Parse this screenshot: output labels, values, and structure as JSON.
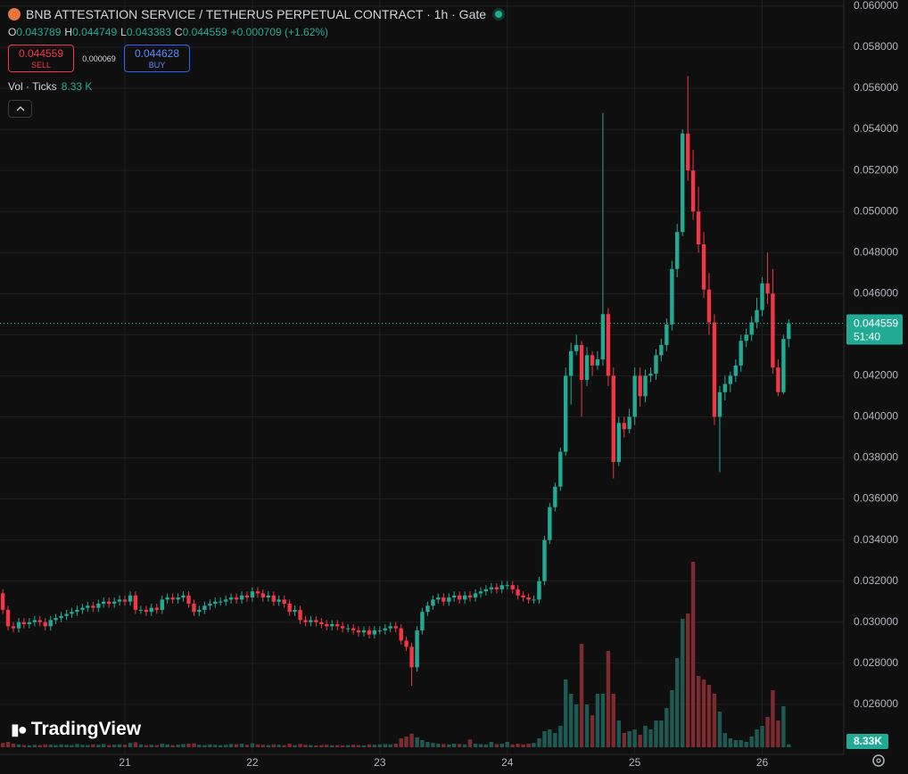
{
  "header": {
    "title": "BNB ATTESTATION SERVICE / TETHERUS PERPETUAL CONTRACT · 1h · Gate",
    "open_label": "O",
    "open": 0.043789,
    "high_label": "H",
    "high": 0.044749,
    "low_label": "L",
    "low": 0.043383,
    "close_label": "C",
    "close": 0.044559,
    "change": "+0.000709 (+1.62%)",
    "sell_price": 0.044559,
    "sell_label": "SELL",
    "spread": 6.9e-05,
    "buy_price": 0.044628,
    "buy_label": "BUY",
    "volume_title": "Vol · Ticks",
    "volume_value": "8.33 K",
    "brand": "TradingView"
  },
  "chart_data": {
    "type": "candlestick",
    "up_color": "#22ab94",
    "down_color": "#f23645",
    "volume_up_color": "#1d5a53",
    "volume_down_color": "#7d2a30",
    "grid": true,
    "xlim": [
      20.02,
      26.64
    ],
    "xticks": [
      21,
      22,
      23,
      24,
      25,
      26
    ],
    "ylim": [
      0.02356,
      0.0603
    ],
    "yticks": [
      {
        "value": 0.026,
        "label": "0.026000"
      },
      {
        "value": 0.028,
        "label": "0.028000"
      },
      {
        "value": 0.03,
        "label": "0.030000"
      },
      {
        "value": 0.032,
        "label": "0.032000"
      },
      {
        "value": 0.034,
        "label": "0.034000"
      },
      {
        "value": 0.036,
        "label": "0.036000"
      },
      {
        "value": 0.038,
        "label": "0.038000"
      },
      {
        "value": 0.04,
        "label": "0.040000"
      },
      {
        "value": 0.042,
        "label": "0.042000"
      },
      {
        "value": 0.044,
        "label": "0.044000"
      },
      {
        "value": 0.046,
        "label": "0.046000"
      },
      {
        "value": 0.048,
        "label": "0.048000"
      },
      {
        "value": 0.05,
        "label": "0.050000"
      },
      {
        "value": 0.052,
        "label": "0.052000"
      },
      {
        "value": 0.054,
        "label": "0.054000"
      },
      {
        "value": 0.056,
        "label": "0.056000"
      },
      {
        "value": 0.058,
        "label": "0.058000"
      },
      {
        "value": 0.06,
        "label": "0.060000"
      }
    ],
    "vlim": [
      0,
      600000
    ],
    "last_price": {
      "value": 0.044559,
      "label": "0.044559"
    },
    "countdown": "51:40",
    "last_volume_label": "8.33K",
    "x": [
      20.042,
      20.083,
      20.125,
      20.167,
      20.208,
      20.25,
      20.292,
      20.333,
      20.375,
      20.417,
      20.458,
      20.5,
      20.542,
      20.583,
      20.625,
      20.667,
      20.708,
      20.75,
      20.792,
      20.833,
      20.875,
      20.917,
      20.958,
      21,
      21.042,
      21.083,
      21.125,
      21.167,
      21.208,
      21.25,
      21.292,
      21.333,
      21.375,
      21.417,
      21.458,
      21.5,
      21.542,
      21.583,
      21.625,
      21.667,
      21.708,
      21.75,
      21.792,
      21.833,
      21.875,
      21.917,
      21.958,
      22,
      22.042,
      22.083,
      22.125,
      22.167,
      22.208,
      22.25,
      22.292,
      22.333,
      22.375,
      22.417,
      22.458,
      22.5,
      22.542,
      22.583,
      22.625,
      22.667,
      22.708,
      22.75,
      22.792,
      22.833,
      22.875,
      22.917,
      22.958,
      23,
      23.042,
      23.083,
      23.125,
      23.167,
      23.208,
      23.25,
      23.292,
      23.333,
      23.375,
      23.417,
      23.458,
      23.5,
      23.542,
      23.583,
      23.625,
      23.667,
      23.708,
      23.75,
      23.792,
      23.833,
      23.875,
      23.917,
      23.958,
      24,
      24.042,
      24.083,
      24.125,
      24.167,
      24.208,
      24.25,
      24.292,
      24.333,
      24.375,
      24.417,
      24.458,
      24.5,
      24.542,
      24.583,
      24.625,
      24.667,
      24.708,
      24.75,
      24.792,
      24.833,
      24.875,
      24.917,
      24.958,
      25,
      25.042,
      25.083,
      25.125,
      25.167,
      25.208,
      25.25,
      25.292,
      25.333,
      25.375,
      25.417,
      25.458,
      25.5,
      25.542,
      25.583,
      25.625,
      25.667,
      25.708,
      25.75,
      25.792,
      25.833,
      25.875,
      25.917,
      25.958,
      26,
      26.042,
      26.083,
      26.125,
      26.167,
      26.208
    ],
    "open": [
      0.0314,
      0.0306,
      0.0298,
      0.0297,
      0.03,
      0.0299,
      0.03,
      0.0301,
      0.03,
      0.0298,
      0.0301,
      0.0302,
      0.0303,
      0.0304,
      0.0305,
      0.0306,
      0.0307,
      0.0308,
      0.0307,
      0.0309,
      0.031,
      0.0309,
      0.031,
      0.0311,
      0.031,
      0.0313,
      0.0306,
      0.0306,
      0.0305,
      0.0307,
      0.0306,
      0.0311,
      0.0312,
      0.0311,
      0.0312,
      0.0313,
      0.0309,
      0.0305,
      0.0306,
      0.0308,
      0.0309,
      0.031,
      0.031,
      0.0311,
      0.0312,
      0.0311,
      0.0313,
      0.0312,
      0.0315,
      0.0314,
      0.0312,
      0.0313,
      0.031,
      0.0311,
      0.0309,
      0.0305,
      0.0306,
      0.0301,
      0.03,
      0.0301,
      0.03,
      0.0299,
      0.0298,
      0.0299,
      0.0298,
      0.0297,
      0.0297,
      0.0296,
      0.0295,
      0.0296,
      0.0294,
      0.0296,
      0.0296,
      0.0297,
      0.0298,
      0.0297,
      0.0291,
      0.0288,
      0.0278,
      0.0296,
      0.0305,
      0.0308,
      0.0311,
      0.0312,
      0.031,
      0.0312,
      0.0313,
      0.0311,
      0.0313,
      0.0312,
      0.0314,
      0.0315,
      0.0316,
      0.0317,
      0.0316,
      0.0318,
      0.0318,
      0.0316,
      0.0313,
      0.0312,
      0.0311,
      0.0311,
      0.032,
      0.034,
      0.0356,
      0.0366,
      0.0383,
      0.042,
      0.0432,
      0.0435,
      0.0418,
      0.043,
      0.0425,
      0.0428,
      0.045,
      0.042,
      0.0378,
      0.0397,
      0.0394,
      0.04,
      0.042,
      0.041,
      0.042,
      0.0421,
      0.043,
      0.0435,
      0.0445,
      0.0472,
      0.049,
      0.0538,
      0.052,
      0.05,
      0.0484,
      0.0462,
      0.0446,
      0.04,
      0.0412,
      0.0416,
      0.042,
      0.0425,
      0.0437,
      0.044,
      0.0446,
      0.0452,
      0.0465,
      0.046,
      0.0424,
      0.0412,
      0.043789
    ],
    "high": [
      0.0316,
      0.0308,
      0.03,
      0.0302,
      0.0302,
      0.0302,
      0.0303,
      0.0303,
      0.0302,
      0.0303,
      0.0304,
      0.0305,
      0.0306,
      0.0307,
      0.0308,
      0.0309,
      0.031,
      0.031,
      0.0311,
      0.0312,
      0.0312,
      0.0312,
      0.0313,
      0.0313,
      0.0315,
      0.0315,
      0.0308,
      0.0308,
      0.0309,
      0.0309,
      0.0313,
      0.0314,
      0.0314,
      0.0314,
      0.0315,
      0.0315,
      0.0311,
      0.0308,
      0.031,
      0.0311,
      0.0312,
      0.0312,
      0.0313,
      0.0314,
      0.0314,
      0.0315,
      0.0315,
      0.0317,
      0.0317,
      0.0316,
      0.0315,
      0.0315,
      0.0313,
      0.0313,
      0.0311,
      0.0308,
      0.0308,
      0.0303,
      0.0303,
      0.0303,
      0.0302,
      0.0301,
      0.0301,
      0.0301,
      0.03,
      0.0299,
      0.0299,
      0.0298,
      0.0298,
      0.0298,
      0.0298,
      0.0298,
      0.0299,
      0.03,
      0.03,
      0.0299,
      0.0293,
      0.029,
      0.0298,
      0.0307,
      0.031,
      0.0313,
      0.0314,
      0.0314,
      0.0314,
      0.0315,
      0.0315,
      0.0315,
      0.0315,
      0.0316,
      0.0317,
      0.0318,
      0.0319,
      0.0319,
      0.032,
      0.032,
      0.032,
      0.0318,
      0.0315,
      0.0314,
      0.0313,
      0.0322,
      0.0342,
      0.0358,
      0.0368,
      0.0385,
      0.0424,
      0.0436,
      0.044,
      0.0437,
      0.0434,
      0.0432,
      0.0432,
      0.0548,
      0.0453,
      0.0424,
      0.04,
      0.04,
      0.0404,
      0.0424,
      0.0424,
      0.0423,
      0.0424,
      0.0433,
      0.0438,
      0.0448,
      0.0476,
      0.0494,
      0.054,
      0.0566,
      0.053,
      0.0512,
      0.049,
      0.047,
      0.045,
      0.0415,
      0.042,
      0.0422,
      0.0428,
      0.044,
      0.0443,
      0.0449,
      0.0458,
      0.0468,
      0.048,
      0.0472,
      0.0428,
      0.044,
      0.044749
    ],
    "low": [
      0.0304,
      0.0296,
      0.0295,
      0.0295,
      0.0297,
      0.0297,
      0.0298,
      0.0298,
      0.0296,
      0.0296,
      0.0299,
      0.03,
      0.0301,
      0.0302,
      0.0303,
      0.0304,
      0.0305,
      0.0305,
      0.0305,
      0.0307,
      0.0307,
      0.0307,
      0.0308,
      0.0308,
      0.0308,
      0.0304,
      0.0304,
      0.0303,
      0.0303,
      0.0304,
      0.0304,
      0.0309,
      0.0309,
      0.0309,
      0.031,
      0.0307,
      0.0303,
      0.0303,
      0.0304,
      0.0306,
      0.0307,
      0.0308,
      0.0308,
      0.0309,
      0.0309,
      0.0309,
      0.031,
      0.031,
      0.0312,
      0.031,
      0.031,
      0.0308,
      0.0308,
      0.0307,
      0.0303,
      0.0303,
      0.0299,
      0.0298,
      0.0298,
      0.0298,
      0.0297,
      0.0296,
      0.0296,
      0.0296,
      0.0295,
      0.0295,
      0.0294,
      0.0293,
      0.0293,
      0.0292,
      0.0292,
      0.0294,
      0.0294,
      0.0295,
      0.0295,
      0.0289,
      0.0286,
      0.0269,
      0.0276,
      0.0294,
      0.0303,
      0.0306,
      0.0309,
      0.0308,
      0.0308,
      0.031,
      0.0309,
      0.0309,
      0.031,
      0.031,
      0.0312,
      0.0313,
      0.0314,
      0.0314,
      0.0314,
      0.0316,
      0.0314,
      0.0311,
      0.031,
      0.0309,
      0.0309,
      0.0309,
      0.0318,
      0.0338,
      0.0354,
      0.0364,
      0.0381,
      0.0406,
      0.043,
      0.04,
      0.0415,
      0.042,
      0.0423,
      0.0425,
      0.0415,
      0.037,
      0.0376,
      0.039,
      0.0392,
      0.0396,
      0.0405,
      0.0407,
      0.0417,
      0.0418,
      0.0427,
      0.0432,
      0.0442,
      0.0468,
      0.0488,
      0.0515,
      0.0496,
      0.048,
      0.0458,
      0.044,
      0.0396,
      0.0373,
      0.0408,
      0.0412,
      0.0417,
      0.0422,
      0.0434,
      0.0437,
      0.0443,
      0.0449,
      0.0455,
      0.0421,
      0.041,
      0.0411,
      0.043383
    ],
    "close": [
      0.0306,
      0.0298,
      0.0297,
      0.03,
      0.0299,
      0.03,
      0.0301,
      0.03,
      0.0298,
      0.0301,
      0.0302,
      0.0303,
      0.0304,
      0.0305,
      0.0306,
      0.0307,
      0.0308,
      0.0307,
      0.0309,
      0.031,
      0.0309,
      0.031,
      0.0311,
      0.031,
      0.0313,
      0.0306,
      0.0306,
      0.0305,
      0.0307,
      0.0306,
      0.0311,
      0.0312,
      0.0311,
      0.0312,
      0.0313,
      0.0309,
      0.0305,
      0.0306,
      0.0308,
      0.0309,
      0.031,
      0.031,
      0.0311,
      0.0312,
      0.0311,
      0.0313,
      0.0312,
      0.0315,
      0.0314,
      0.0312,
      0.0313,
      0.031,
      0.0311,
      0.0309,
      0.0305,
      0.0306,
      0.0301,
      0.03,
      0.0301,
      0.03,
      0.0299,
      0.0298,
      0.0299,
      0.0298,
      0.0297,
      0.0297,
      0.0296,
      0.0295,
      0.0296,
      0.0294,
      0.0296,
      0.0296,
      0.0297,
      0.0298,
      0.0297,
      0.0291,
      0.0288,
      0.0278,
      0.0296,
      0.0305,
      0.0308,
      0.0311,
      0.0312,
      0.031,
      0.0312,
      0.0313,
      0.0311,
      0.0313,
      0.0312,
      0.0314,
      0.0315,
      0.0316,
      0.0317,
      0.0316,
      0.0318,
      0.0318,
      0.0316,
      0.0313,
      0.0312,
      0.0311,
      0.0311,
      0.032,
      0.034,
      0.0356,
      0.0366,
      0.0383,
      0.042,
      0.0432,
      0.0435,
      0.0418,
      0.043,
      0.0425,
      0.0428,
      0.045,
      0.042,
      0.0378,
      0.0397,
      0.0394,
      0.04,
      0.042,
      0.041,
      0.042,
      0.0421,
      0.043,
      0.0435,
      0.0445,
      0.0472,
      0.049,
      0.0538,
      0.052,
      0.05,
      0.0484,
      0.0462,
      0.0446,
      0.04,
      0.0412,
      0.0416,
      0.042,
      0.0425,
      0.0437,
      0.044,
      0.0446,
      0.0452,
      0.0465,
      0.046,
      0.0424,
      0.0412,
      0.043789,
      0.044559
    ],
    "volume": [
      12000,
      15000,
      10000,
      8000,
      6000,
      5000,
      7000,
      6000,
      8000,
      7000,
      6000,
      8000,
      7000,
      6000,
      9000,
      7000,
      6000,
      8000,
      7000,
      9000,
      6000,
      7000,
      8000,
      7000,
      12000,
      14000,
      8000,
      6000,
      7000,
      6000,
      10000,
      8000,
      6000,
      7000,
      9000,
      10000,
      11000,
      7000,
      6000,
      8000,
      7000,
      6000,
      7000,
      9000,
      8000,
      10000,
      7000,
      11000,
      8000,
      7000,
      6000,
      8000,
      7000,
      6000,
      10000,
      6000,
      9000,
      7000,
      6000,
      5000,
      6000,
      7000,
      5000,
      6000,
      5000,
      6000,
      7000,
      6000,
      5000,
      8000,
      7000,
      8000,
      9000,
      8000,
      10000,
      25000,
      30000,
      38000,
      28000,
      20000,
      15000,
      12000,
      10000,
      9000,
      8000,
      10000,
      9000,
      8000,
      22000,
      10000,
      9000,
      8000,
      15000,
      9000,
      10000,
      15000,
      8000,
      10000,
      8000,
      10000,
      12000,
      25000,
      45000,
      50000,
      40000,
      60000,
      190000,
      150000,
      120000,
      290000,
      120000,
      90000,
      150000,
      150000,
      270000,
      150000,
      75000,
      40000,
      45000,
      50000,
      35000,
      60000,
      50000,
      75000,
      75000,
      110000,
      160000,
      250000,
      360000,
      375000,
      520000,
      200000,
      190000,
      175000,
      150000,
      100000,
      40000,
      25000,
      20000,
      20000,
      15000,
      30000,
      50000,
      60000,
      85000,
      160000,
      75000,
      115000,
      8330
    ]
  }
}
